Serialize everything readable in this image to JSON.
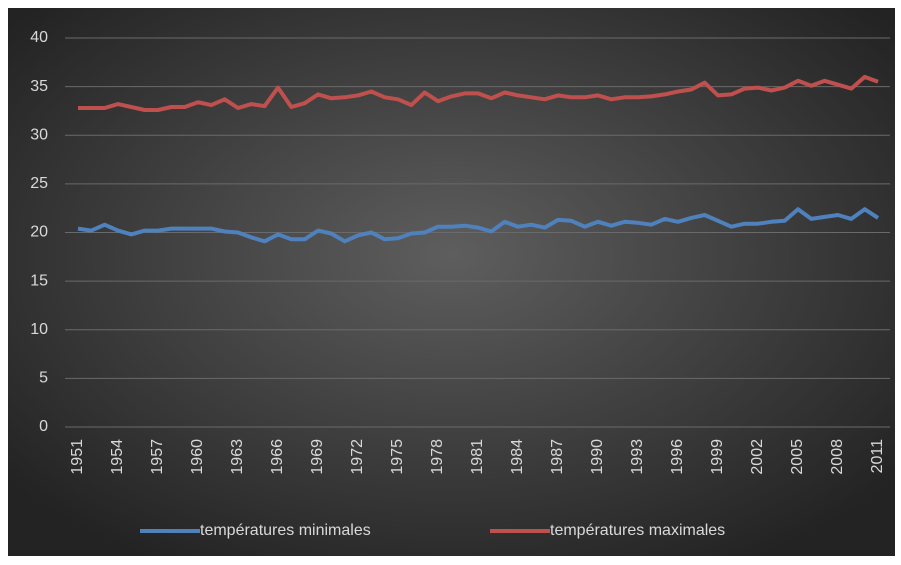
{
  "chart_data": {
    "type": "line",
    "categories": [
      "1951",
      null,
      null,
      "1954",
      null,
      null,
      "1957",
      null,
      null,
      "1960",
      null,
      null,
      "1963",
      null,
      null,
      "1966",
      null,
      null,
      "1969",
      null,
      null,
      "1972",
      null,
      null,
      "1975",
      null,
      null,
      "1978",
      null,
      null,
      "1981",
      null,
      null,
      "1984",
      null,
      null,
      "1987",
      null,
      null,
      "1990",
      null,
      null,
      "1993",
      null,
      null,
      "1996",
      null,
      null,
      "1999",
      null,
      null,
      "2002",
      null,
      null,
      "2005",
      null,
      null,
      "2008",
      null,
      null,
      "2011"
    ],
    "series": [
      {
        "name": "températures minimales",
        "color": "#4f81bd",
        "values": [
          20.4,
          20.2,
          20.8,
          20.2,
          19.8,
          20.2,
          20.2,
          20.4,
          20.4,
          20.4,
          20.4,
          20.1,
          20.0,
          19.5,
          19.1,
          19.8,
          19.3,
          19.3,
          20.2,
          19.9,
          19.1,
          19.7,
          20.0,
          19.3,
          19.4,
          19.9,
          20.0,
          20.6,
          20.6,
          20.7,
          20.5,
          20.1,
          21.1,
          20.6,
          20.8,
          20.5,
          21.3,
          21.2,
          20.6,
          21.1,
          20.7,
          21.1,
          21.0,
          20.8,
          21.4,
          21.1,
          21.5,
          21.8,
          21.2,
          20.6,
          20.9,
          20.9,
          21.1,
          21.2,
          22.4,
          21.4,
          21.6,
          21.8,
          21.4,
          22.4,
          21.5
        ]
      },
      {
        "name": "températures maximales",
        "color": "#c0504d",
        "values": [
          32.8,
          32.8,
          32.8,
          33.2,
          32.9,
          32.6,
          32.6,
          32.9,
          32.9,
          33.4,
          33.1,
          33.7,
          32.8,
          33.2,
          33.0,
          34.9,
          32.9,
          33.3,
          34.2,
          33.8,
          33.9,
          34.1,
          34.5,
          33.9,
          33.7,
          33.1,
          34.4,
          33.5,
          34.0,
          34.3,
          34.3,
          33.8,
          34.4,
          34.1,
          33.9,
          33.7,
          34.1,
          33.9,
          33.9,
          34.1,
          33.7,
          33.9,
          33.9,
          34.0,
          34.2,
          34.5,
          34.7,
          35.4,
          34.1,
          34.2,
          34.8,
          34.9,
          34.6,
          34.9,
          35.6,
          35.1,
          35.6,
          35.2,
          34.8,
          36.0,
          35.5
        ]
      }
    ],
    "ylim": [
      0,
      40
    ],
    "yticks": [
      0,
      5,
      10,
      15,
      20,
      25,
      30,
      35,
      40
    ],
    "grid": true,
    "legend": "bottom"
  }
}
